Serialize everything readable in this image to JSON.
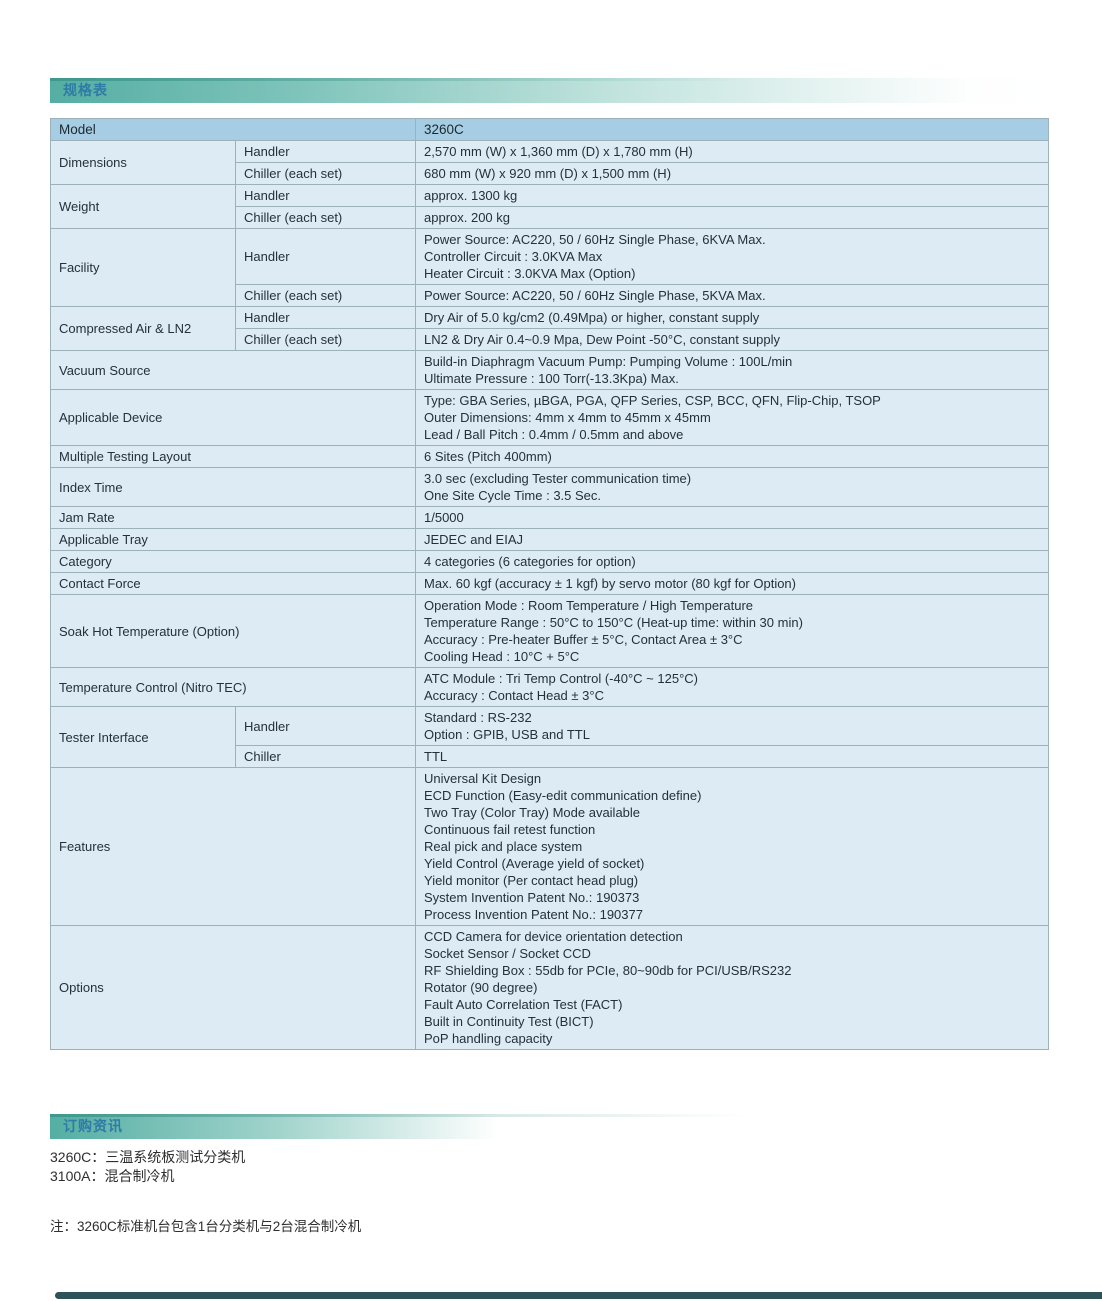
{
  "sections": {
    "spec_title": "规格表",
    "order_title": "订购资讯"
  },
  "table": {
    "model_label": "Model",
    "model_value": "3260C",
    "rows": [
      {
        "label": "Dimensions",
        "group": [
          {
            "sub": "Handler",
            "lines": [
              "2,570 mm (W) x 1,360 mm (D) x 1,780 mm (H)"
            ]
          },
          {
            "sub": "Chiller (each set)",
            "lines": [
              "680 mm (W) x 920 mm (D) x 1,500 mm (H)"
            ]
          }
        ]
      },
      {
        "label": "Weight",
        "group": [
          {
            "sub": "Handler",
            "lines": [
              "approx. 1300 kg"
            ]
          },
          {
            "sub": "Chiller (each set)",
            "lines": [
              "approx. 200 kg"
            ]
          }
        ]
      },
      {
        "label": "Facility",
        "group": [
          {
            "sub": "Handler",
            "lines": [
              "Power Source: AC220, 50 / 60Hz Single Phase, 6KVA Max.",
              "Controller Circuit : 3.0KVA Max",
              "Heater Circuit : 3.0KVA Max (Option)"
            ]
          },
          {
            "sub": "Chiller (each set)",
            "lines": [
              "Power Source: AC220, 50 / 60Hz Single Phase, 5KVA Max."
            ]
          }
        ]
      },
      {
        "label": "Compressed Air & LN2",
        "group": [
          {
            "sub": "Handler",
            "lines": [
              "Dry Air of 5.0 kg/cm2 (0.49Mpa) or higher, constant supply"
            ]
          },
          {
            "sub": "Chiller (each set)",
            "lines": [
              "LN2 & Dry Air 0.4~0.9 Mpa, Dew Point -50°C, constant supply"
            ]
          }
        ]
      },
      {
        "label": "Vacuum Source",
        "lines": [
          "Build-in Diaphragm Vacuum Pump: Pumping Volume : 100L/min",
          "Ultimate Pressure : 100 Torr(-13.3Kpa) Max."
        ]
      },
      {
        "label": "Applicable Device",
        "lines": [
          "Type: GBA Series, µBGA, PGA, QFP Series, CSP, BCC, QFN, Flip-Chip, TSOP",
          "Outer Dimensions: 4mm x 4mm to 45mm x 45mm",
          "Lead / Ball Pitch : 0.4mm / 0.5mm and above"
        ]
      },
      {
        "label": "Multiple Testing Layout",
        "lines": [
          "6 Sites (Pitch 400mm)"
        ]
      },
      {
        "label": "Index Time",
        "lines": [
          "3.0 sec (excluding Tester communication time)",
          "One Site Cycle Time : 3.5 Sec."
        ]
      },
      {
        "label": "Jam Rate",
        "lines": [
          "1/5000"
        ]
      },
      {
        "label": "Applicable Tray",
        "lines": [
          "JEDEC and EIAJ"
        ]
      },
      {
        "label": "Category",
        "lines": [
          "4 categories (6 categories for option)"
        ]
      },
      {
        "label": "Contact Force",
        "lines": [
          "Max. 60 kgf  (accuracy ± 1 kgf) by servo motor (80 kgf for Option)"
        ]
      },
      {
        "label": "Soak Hot Temperature (Option)",
        "lines": [
          "Operation Mode : Room Temperature / High Temperature",
          "Temperature Range : 50°C to 150°C (Heat-up time: within 30 min)",
          "Accuracy : Pre-heater Buffer ± 5°C, Contact Area ± 3°C",
          "Cooling Head : 10°C + 5°C"
        ]
      },
      {
        "label": "Temperature Control (Nitro TEC)",
        "lines": [
          "ATC Module : Tri Temp Control (-40°C ~ 125°C)",
          "Accuracy : Contact Head ± 3°C"
        ]
      },
      {
        "label": "Tester Interface",
        "group": [
          {
            "sub": "Handler",
            "lines": [
              "Standard : RS-232",
              "Option : GPIB, USB and TTL"
            ]
          },
          {
            "sub": "Chiller",
            "lines": [
              "TTL"
            ]
          }
        ]
      },
      {
        "label": "Features",
        "lines": [
          "Universal Kit Design",
          "ECD Function (Easy-edit communication define)",
          "Two Tray (Color Tray) Mode available",
          "Continuous fail retest function",
          "Real pick and place system",
          "Yield Control (Average yield of socket)",
          "Yield monitor (Per contact head plug)",
          "System Invention Patent No.: 190373",
          "Process Invention Patent No.: 190377"
        ]
      },
      {
        "label": "Options",
        "lines": [
          "CCD Camera for device orientation detection",
          "Socket Sensor / Socket CCD",
          "RF Shielding Box : 55db for PCIe, 80~90db for PCI/USB/RS232",
          "Rotator (90 degree)",
          "Fault Auto Correlation Test (FACT)",
          "Built in Continuity Test (BICT)",
          "PoP handling capacity"
        ]
      }
    ]
  },
  "ordering": {
    "lines": [
      "3260C：三温系统板测试分类机",
      "3100A：混合制冷机"
    ],
    "note": "注：3260C标准机台包含1台分类机与2台混合制冷机"
  },
  "colors": {
    "banner_teal": "#55aea3",
    "banner_title_blue": "#2f7ba6",
    "table_header_bg": "#a6cde3",
    "table_cell_bg": "#dcebf4",
    "table_border": "#9db1b8",
    "footer_bar": "#2d5257"
  }
}
